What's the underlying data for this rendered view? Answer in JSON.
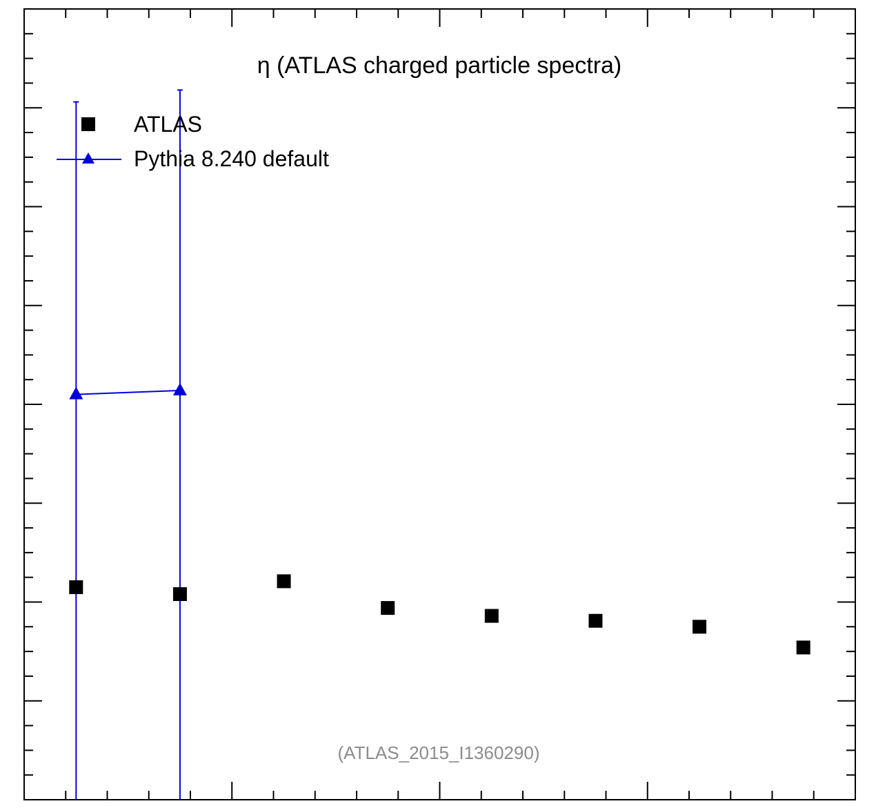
{
  "chart_data": {
    "type": "scatter",
    "title": "η (ATLAS charged particle spectra)",
    "xlabel": "",
    "ylabel": "",
    "annotation": "(ATLAS_2015_I1360290)",
    "legend_position": "top-left",
    "x_bins": 8,
    "series": [
      {
        "name": "ATLAS",
        "marker": "square",
        "color": "#000000",
        "x": [
          1,
          2,
          3,
          4,
          5,
          6,
          7,
          8
        ],
        "values": [
          2.15,
          2.08,
          2.21,
          1.94,
          1.86,
          1.81,
          1.75,
          1.54
        ]
      },
      {
        "name": "Pythia 8.240 default",
        "marker": "triangle",
        "color": "#0000dd",
        "x": [
          1,
          2
        ],
        "values": [
          4.1,
          4.14
        ],
        "err_up": [
          2.96,
          3.04
        ],
        "err_down": [
          4.1,
          4.14
        ]
      }
    ],
    "ylim": [
      0,
      8
    ]
  }
}
